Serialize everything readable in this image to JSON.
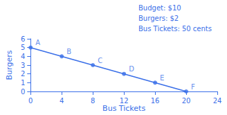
{
  "chart_data": {
    "type": "line",
    "xlabel": "Bus Tickets",
    "ylabel": "Burgers",
    "annotations": [
      "Budget: $10",
      "Burgers: $2",
      "Bus Tickets: 50 cents"
    ],
    "color": "#3a6fe8",
    "series": [
      {
        "type": "line",
        "x": [
          0,
          20
        ],
        "values": [
          5,
          0
        ],
        "color": "#3a6fe8"
      },
      {
        "type": "scatter",
        "x": [
          0,
          4,
          8,
          12,
          16,
          20
        ],
        "values": [
          5,
          4,
          3,
          2,
          1,
          0
        ],
        "labels": [
          "A",
          "B",
          "C",
          "D",
          "E",
          "F"
        ],
        "color": "#3a6fe8",
        "marker": "circle"
      }
    ],
    "xlim": [
      0,
      24
    ],
    "ylim": [
      0,
      6
    ],
    "xticks": [
      0,
      4,
      8,
      12,
      16,
      20,
      24
    ],
    "yticks": [
      0,
      1,
      2,
      3,
      4,
      5,
      6
    ],
    "grid": false
  }
}
